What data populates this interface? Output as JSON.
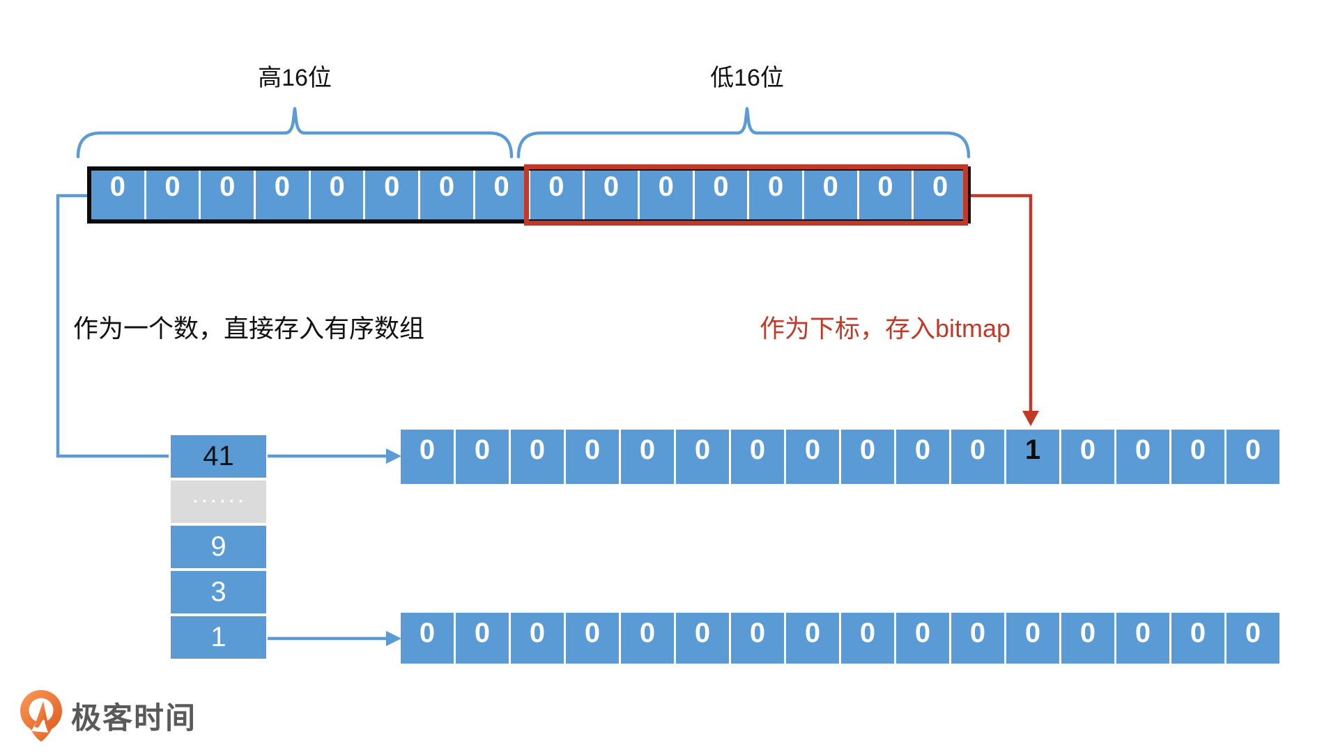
{
  "labels": {
    "high16": "高16位",
    "low16": "低16位",
    "store_number": "作为一个数，直接存入有序数组",
    "store_bitmap": "作为下标，存入bitmap"
  },
  "bit_array": {
    "cells": [
      "0",
      "0",
      "0",
      "0",
      "0",
      "0",
      "0",
      "0",
      "0",
      "0",
      "0",
      "0",
      "0",
      "0",
      "0",
      "0"
    ]
  },
  "sorted_array": {
    "items": [
      {
        "value": "41",
        "cls": "dark-text"
      },
      {
        "value": "······",
        "cls": "ellipsis"
      },
      {
        "value": "9",
        "cls": ""
      },
      {
        "value": "3",
        "cls": ""
      },
      {
        "value": "1",
        "cls": ""
      }
    ]
  },
  "bitmap": {
    "rows": [
      {
        "cells": [
          "0",
          "0",
          "0",
          "0",
          "0",
          "0",
          "0",
          "0",
          "0",
          "0",
          "0",
          "1",
          "0",
          "0",
          "0",
          "0"
        ],
        "highlight_index": 11
      },
      {
        "cells": [
          "0",
          "0",
          "0",
          "0",
          "0",
          "0",
          "0",
          "0",
          "0",
          "0",
          "0",
          "0",
          "0",
          "0",
          "0",
          "0"
        ],
        "highlight_index": -1
      }
    ]
  },
  "logo": {
    "text": "极客时间"
  },
  "colors": {
    "blue": "#5B9BD5",
    "red": "#C13A29",
    "gray": "#DBDBDB",
    "logo_gray": "#595959",
    "logo_orange": "#ED6A2C"
  }
}
